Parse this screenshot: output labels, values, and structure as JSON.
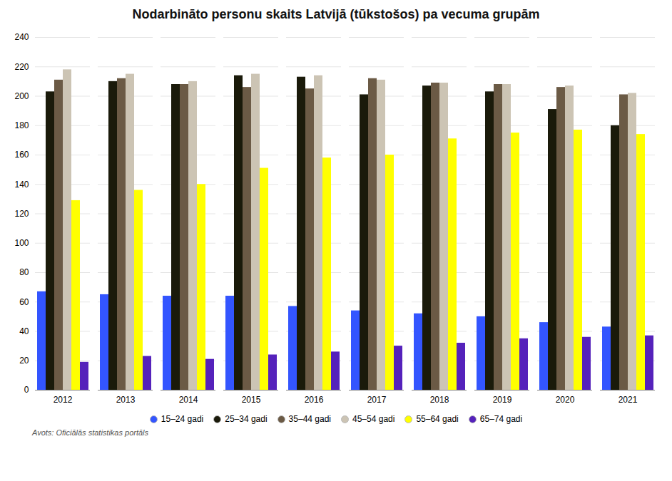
{
  "chart_data": {
    "type": "bar",
    "title": "Nodarbināto personu skaits Latvijā (tūkstošos) pa vecuma grupām",
    "categories": [
      "2012",
      "2013",
      "2014",
      "2015",
      "2016",
      "2017",
      "2018",
      "2019",
      "2020",
      "2021"
    ],
    "series": [
      {
        "name": "15–24 gadi",
        "color": "#3355ff",
        "values": [
          67,
          65,
          64,
          64,
          57,
          54,
          52,
          50,
          46,
          43
        ]
      },
      {
        "name": "25–34 gadi",
        "color": "#1a1a0a",
        "values": [
          203,
          210,
          208,
          214,
          213,
          201,
          207,
          203,
          191,
          180
        ]
      },
      {
        "name": "35–44 gadi",
        "color": "#6b5a45",
        "values": [
          211,
          212,
          208,
          206,
          205,
          212,
          209,
          208,
          206,
          201
        ]
      },
      {
        "name": "45–54 gadi",
        "color": "#ccc4b4",
        "values": [
          218,
          215,
          210,
          215,
          214,
          211,
          209,
          208,
          207,
          202
        ]
      },
      {
        "name": "55–64 gadi",
        "color": "#ffff00",
        "values": [
          129,
          136,
          140,
          151,
          158,
          160,
          171,
          175,
          177,
          174
        ]
      },
      {
        "name": "65–74 gadi",
        "color": "#5522bb",
        "values": [
          19,
          23,
          21,
          24,
          26,
          30,
          32,
          35,
          36,
          37
        ]
      }
    ],
    "ylim": [
      0,
      240
    ],
    "yticks": [
      0,
      20,
      40,
      60,
      80,
      100,
      120,
      140,
      160,
      180,
      200,
      220,
      240
    ],
    "grid": true,
    "legend": "bottom",
    "annotations": [
      "Avots: Oficiālās statistikas portāls"
    ]
  }
}
